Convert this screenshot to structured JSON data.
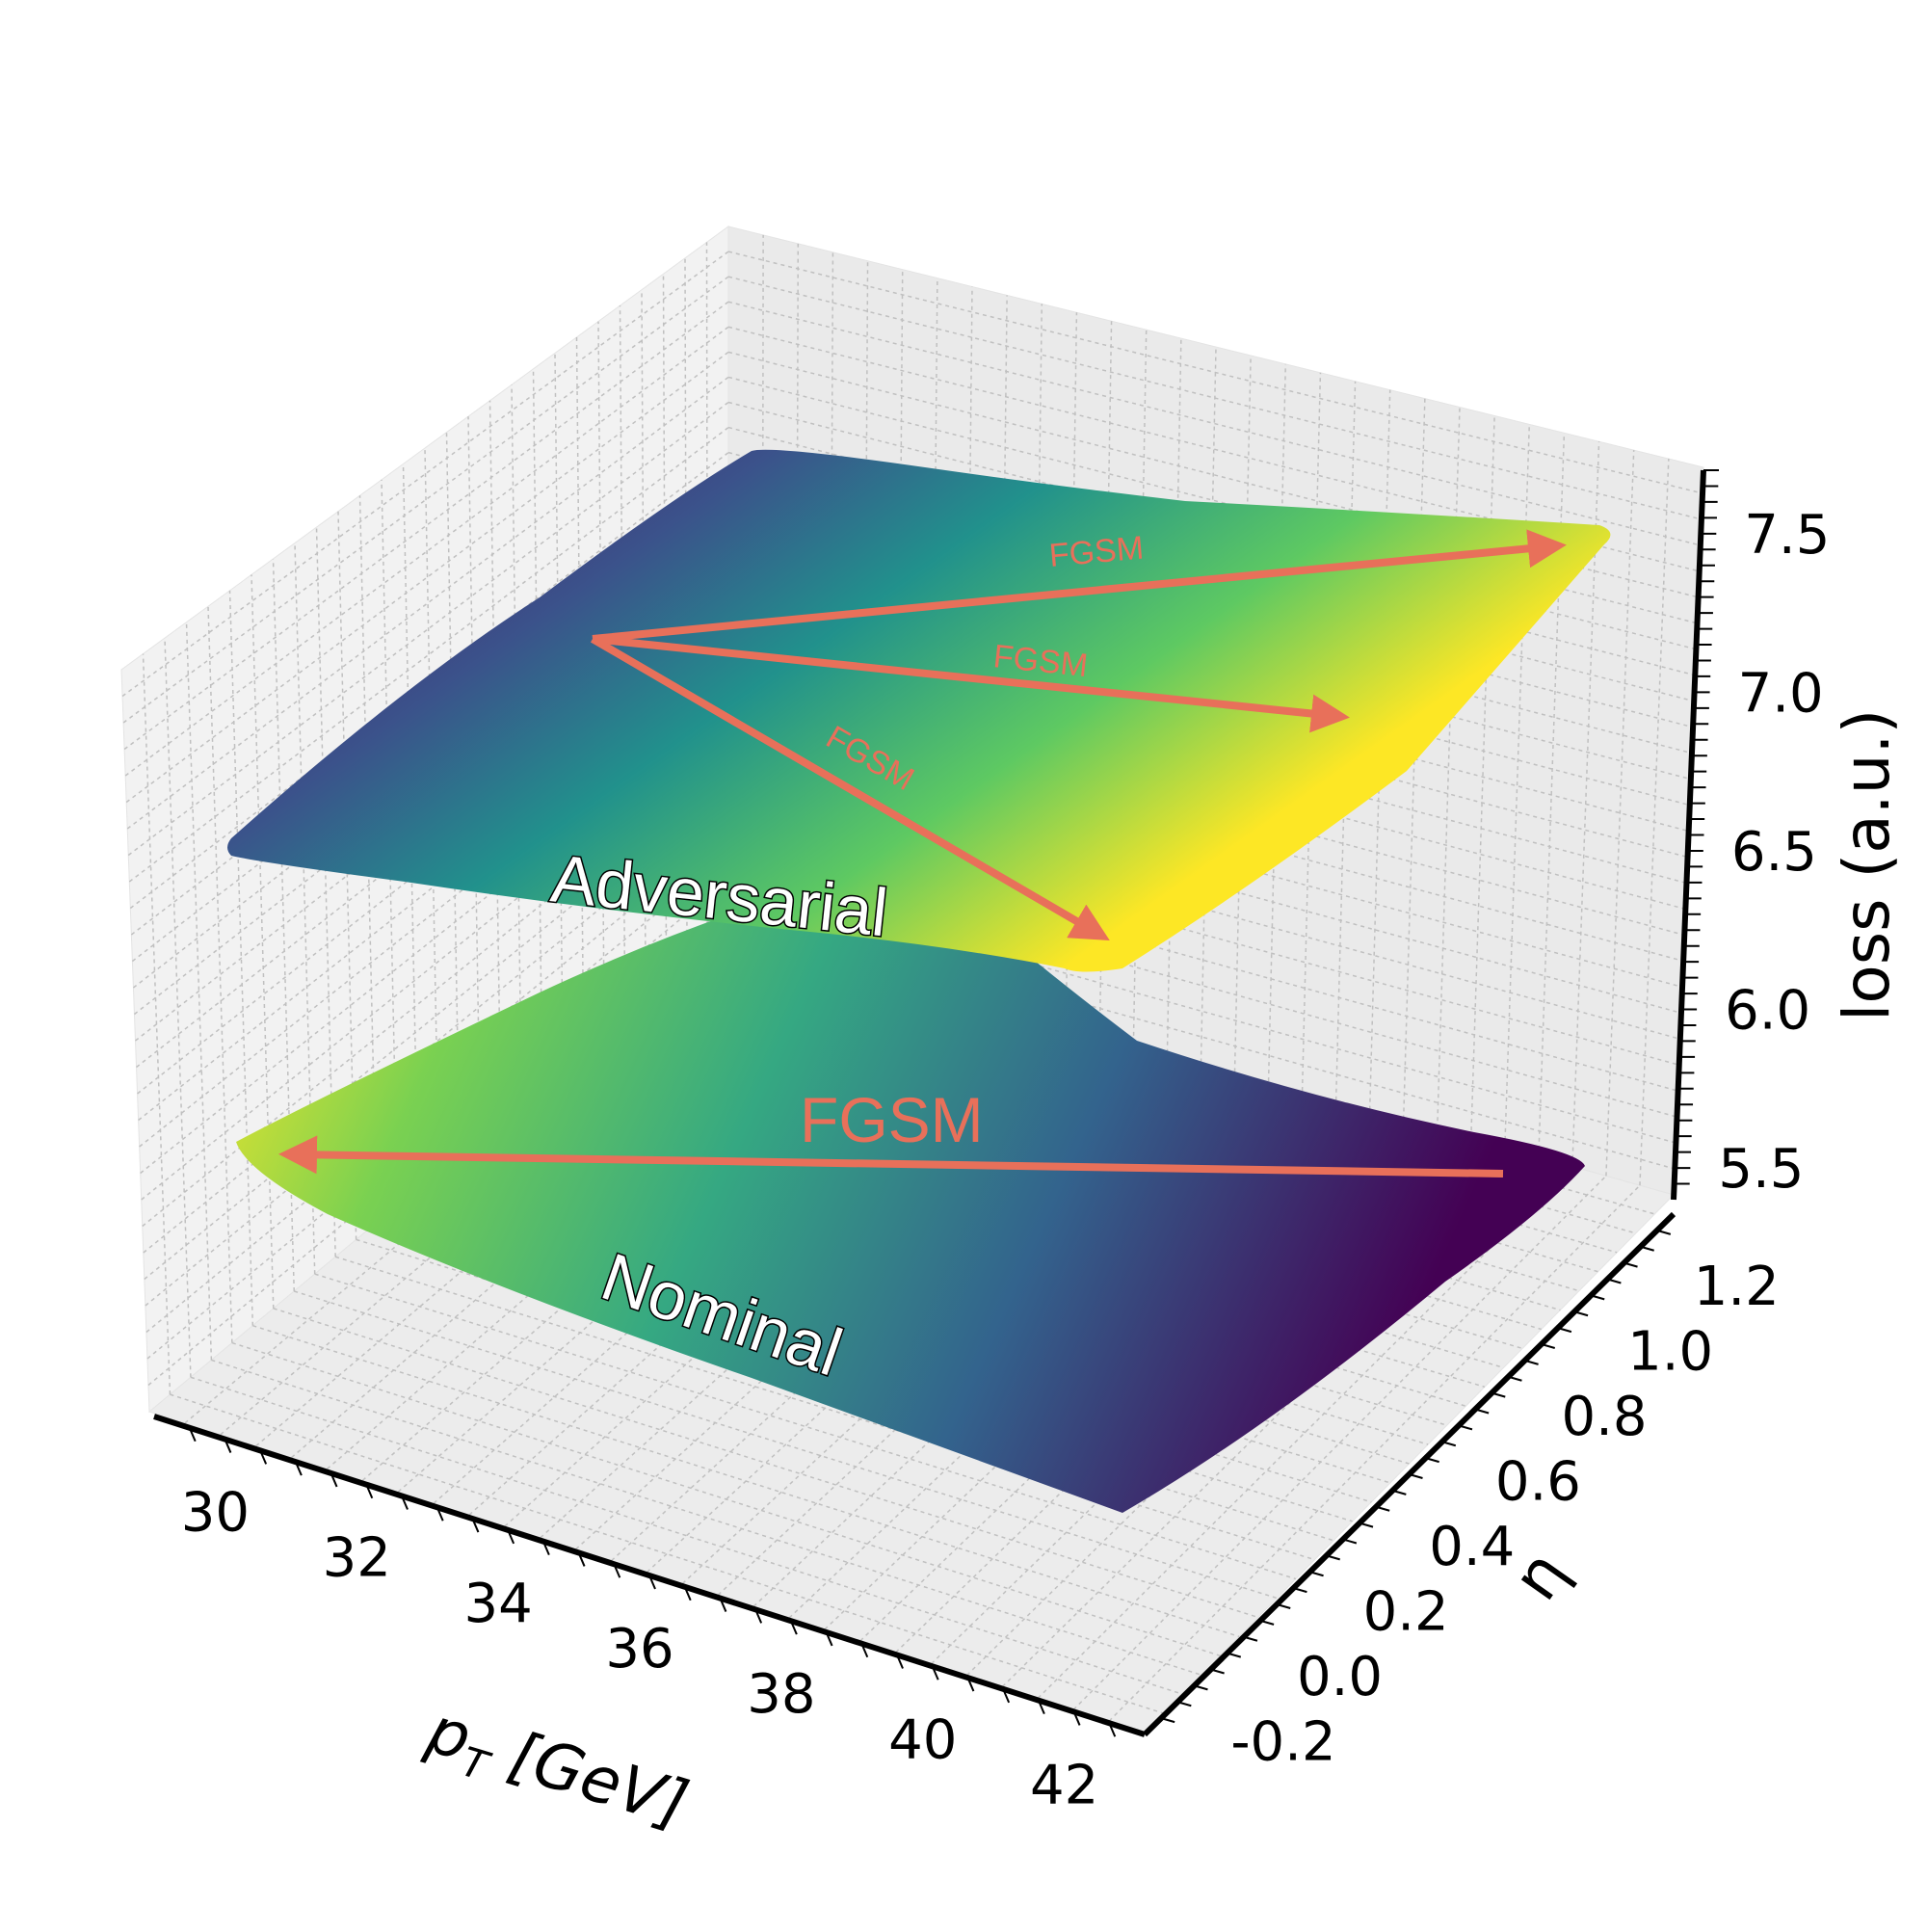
{
  "chart_data": {
    "type": "surface",
    "xlabel": "p",
    "xlabel_sub": "T",
    "xlabel_unit": " [GeV]",
    "ylabel": "η",
    "zlabel": "loss (a.u.)",
    "x_ticks": [
      "30",
      "32",
      "34",
      "36",
      "38",
      "40",
      "42"
    ],
    "y_ticks": [
      "-0.2",
      "0.0",
      "0.2",
      "0.4",
      "0.6",
      "0.8",
      "1.0",
      "1.2"
    ],
    "z_ticks": [
      "5.5",
      "6.0",
      "6.5",
      "7.0",
      "7.5"
    ],
    "xlim": [
      29,
      43
    ],
    "ylim": [
      -0.3,
      1.3
    ],
    "zlim": [
      5.4,
      7.7
    ],
    "colormap": "viridis",
    "grid": true,
    "surfaces": [
      {
        "label": "Adversarial",
        "corners": [
          {
            "pt": 30,
            "eta": 0.0,
            "loss": 6.55
          },
          {
            "pt": 42,
            "eta": 0.0,
            "loss": 6.35
          },
          {
            "pt": 42,
            "eta": 1.2,
            "loss": 7.55
          },
          {
            "pt": 30,
            "eta": 1.2,
            "loss": 7.35
          }
        ]
      },
      {
        "label": "Nominal",
        "corners": [
          {
            "pt": 30,
            "eta": 0.0,
            "loss": 5.85
          },
          {
            "pt": 42,
            "eta": 0.0,
            "loss": 5.5
          },
          {
            "pt": 42,
            "eta": 1.2,
            "loss": 5.85
          },
          {
            "pt": 30,
            "eta": 1.2,
            "loss": 6.25
          }
        ]
      }
    ],
    "annotations": [
      {
        "text": "FGSM",
        "surface": "Adversarial",
        "from": [
          33,
          0.8
        ],
        "to": [
          42,
          1.2
        ]
      },
      {
        "text": "FGSM",
        "surface": "Adversarial",
        "from": [
          33,
          0.8
        ],
        "to": [
          41,
          0.8
        ]
      },
      {
        "text": "FGSM",
        "surface": "Adversarial",
        "from": [
          33,
          0.8
        ],
        "to": [
          41,
          0.1
        ]
      },
      {
        "text": "FGSM",
        "surface": "Nominal",
        "from": [
          41,
          1.2
        ],
        "to": [
          31,
          0.1
        ]
      }
    ],
    "colors": {
      "arrow": "#e8705a",
      "pane": "#f2f2f2",
      "grid": "#c0c0c0",
      "viridis": [
        "#440154",
        "#3b528b",
        "#21918c",
        "#5ec962",
        "#fde725"
      ]
    }
  }
}
